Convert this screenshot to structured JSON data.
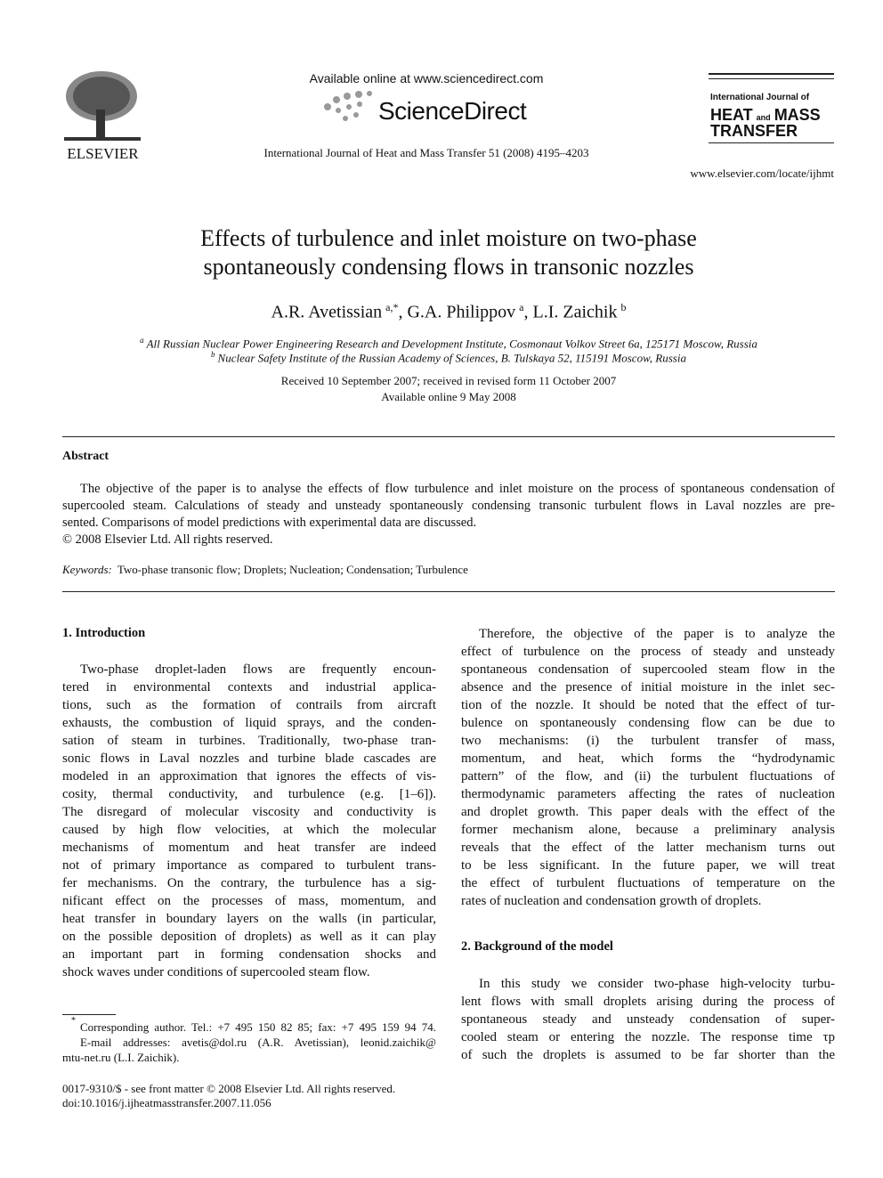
{
  "header": {
    "available_online": "Available online at www.sciencedirect.com",
    "sciencedirect": "ScienceDirect",
    "citation": "International Journal of Heat and Mass Transfer 51 (2008) 4195–4203",
    "publisher": "ELSEVIER",
    "journal_logo": {
      "line1": "International Journal of",
      "heat": "HEAT",
      "and": "and",
      "mass": "MASS",
      "transfer": "TRANSFER"
    },
    "url": "www.elsevier.com/locate/ijhmt"
  },
  "title": "Effects of turbulence and inlet moisture on two-phase spontaneously condensing flows in transonic nozzles",
  "authors": [
    {
      "name": "A.R. Avetissian",
      "sup": "a,*"
    },
    {
      "name": ", G.A. Philippov",
      "sup": "a"
    },
    {
      "name": ", L.I. Zaichik",
      "sup": "b"
    }
  ],
  "affiliations": [
    {
      "marker": "a",
      "text": "All Russian Nuclear Power Engineering Research and Development Institute, Cosmonaut Volkov Street 6a, 125171 Moscow, Russia"
    },
    {
      "marker": "b",
      "text": "Nuclear Safety Institute of the Russian Academy of Sciences, B. Tulskaya 52, 115191 Moscow, Russia"
    }
  ],
  "dates": [
    "Received 10 September 2007; received in revised form 11 October 2007",
    "Available online 9 May 2008"
  ],
  "abstract": {
    "heading": "Abstract",
    "lines": [
      "The objective of the paper is to analyse the effects of flow turbulence and inlet moisture on the process of spontaneous condensation of",
      "supercooled steam. Calculations of steady and unsteady spontaneously condensing transonic turbulent flows in Laval nozzles are pre-",
      "sented. Comparisons of model predictions with experimental data are discussed."
    ],
    "copyright": "© 2008 Elsevier Ltd. All rights reserved."
  },
  "keywords": {
    "label": "Keywords:",
    "text": "Two-phase transonic flow; Droplets; Nucleation; Condensation; Turbulence"
  },
  "sections": [
    {
      "heading": "1. Introduction",
      "paragraphs": [
        {
          "lines": [
            "Two-phase droplet-laden flows are frequently encoun-",
            "tered in environmental contexts and industrial applica-",
            "tions, such as the formation of contrails from aircraft",
            "exhausts, the combustion of liquid sprays, and the conden-",
            "sation of steam in turbines. Traditionally, two-phase tran-",
            "sonic flows in Laval nozzles and turbine blade cascades are",
            "modeled in an approximation that ignores the effects of vis-",
            "cosity, thermal conductivity, and turbulence (e.g. [1–6]).",
            "The disregard of molecular viscosity and conductivity is",
            "caused by high flow velocities, at which the molecular",
            "mechanisms of momentum and heat transfer are indeed",
            "not of primary importance as compared to turbulent trans-",
            "fer mechanisms. On the contrary, the turbulence has a sig-",
            "nificant effect on the processes of mass, momentum, and",
            "heat transfer in boundary layers on the walls (in particular,",
            "on the possible deposition of droplets) as well as it can play",
            "an important part in forming condensation shocks and",
            "shock waves under conditions of supercooled steam flow."
          ]
        },
        {
          "lines": [
            "Therefore, the objective of the paper is to analyze the",
            "effect of turbulence on the process of steady and unsteady",
            "spontaneous condensation of supercooled steam flow in the",
            "absence and the presence of initial moisture in the inlet sec-",
            "tion of the nozzle. It should be noted that the effect of tur-",
            "bulence on spontaneously condensing flow can be due to",
            "two mechanisms: (i) the turbulent transfer of mass,",
            "momentum, and heat, which forms the “hydrodynamic",
            "pattern” of the flow, and (ii) the turbulent fluctuations of",
            "thermodynamic parameters affecting the rates of nucleation",
            "and droplet growth. This paper deals with the effect of the",
            "former mechanism alone, because a preliminary analysis",
            "reveals that the effect of the latter mechanism turns out",
            "to be less significant. In the future paper, we will treat",
            "the effect of turbulent fluctuations of temperature on the",
            "rates of nucleation and condensation growth of droplets."
          ]
        }
      ]
    },
    {
      "heading": "2. Background of the model",
      "paragraphs": [
        {
          "lines": [
            "In this study we consider two-phase high-velocity turbu-",
            "lent flows with small droplets arising during the process of",
            "spontaneous steady and unsteady condensation of super-",
            "cooled steam or entering the nozzle. The response time τp",
            "of such the droplets is assumed to be far shorter than the"
          ]
        }
      ]
    }
  ],
  "footnote": {
    "marker": "*",
    "lines": [
      "Corresponding author. Tel.: +7 495 150 82 85; fax: +7 495 159 94 74.",
      "E-mail addresses: avetis@dol.ru (A.R. Avetissian), leonid.zaichik@",
      "mtu-net.ru (L.I. Zaichik)."
    ]
  },
  "front_matter": [
    "0017-9310/$ - see front matter © 2008 Elsevier Ltd. All rights reserved.",
    "doi:10.1016/j.ijheatmasstransfer.2007.11.056"
  ]
}
